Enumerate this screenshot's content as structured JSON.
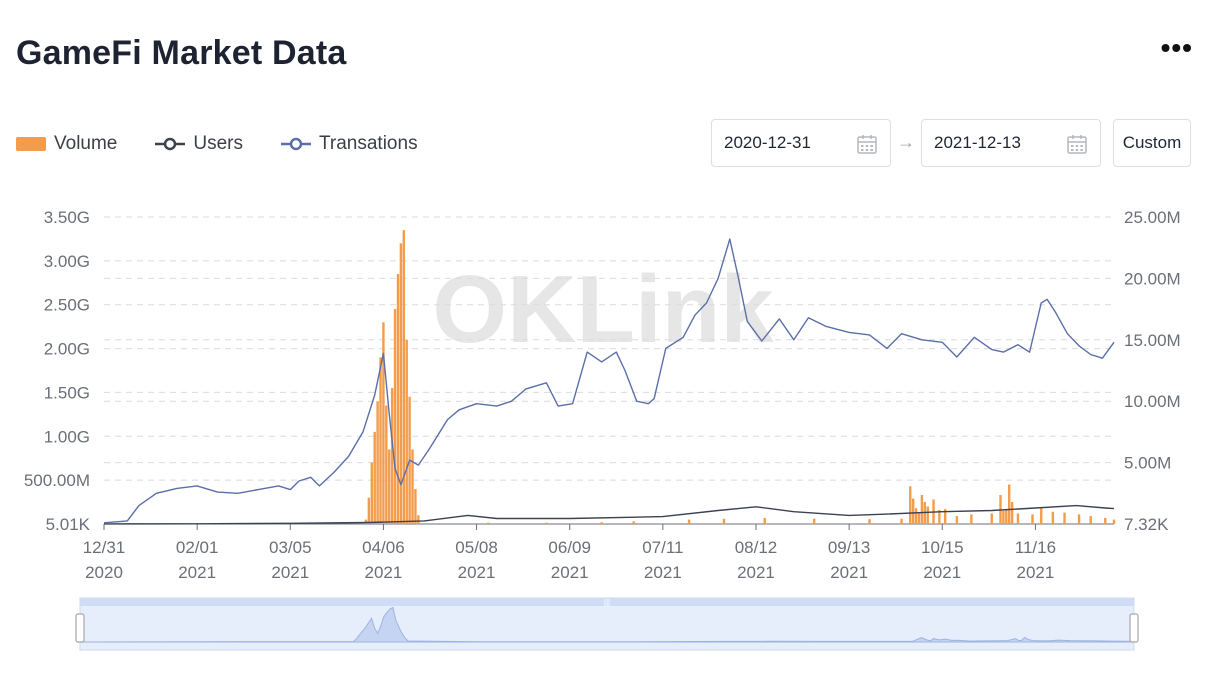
{
  "header": {
    "title": "GameFi Market Data",
    "more_icon": "more-horizontal-icon",
    "more_label": "•••"
  },
  "legend": [
    {
      "label": "Volume",
      "color": "#f39c4b",
      "kind": "bar"
    },
    {
      "label": "Users",
      "color": "#3d4252",
      "kind": "line"
    },
    {
      "label": "Transations",
      "color": "#5b6fa8",
      "kind": "line"
    }
  ],
  "date_range": {
    "start": "2020-12-31",
    "end": "2021-12-13",
    "arrow": "→",
    "custom_label": "Custom",
    "calendar_icon": "calendar-icon"
  },
  "watermark": "OKLink",
  "chart_data": {
    "type": "bar",
    "x_ticks": [
      {
        "date": "12/31",
        "year": "2020"
      },
      {
        "date": "02/01",
        "year": "2021"
      },
      {
        "date": "03/05",
        "year": "2021"
      },
      {
        "date": "04/06",
        "year": "2021"
      },
      {
        "date": "05/08",
        "year": "2021"
      },
      {
        "date": "06/09",
        "year": "2021"
      },
      {
        "date": "07/11",
        "year": "2021"
      },
      {
        "date": "08/12",
        "year": "2021"
      },
      {
        "date": "09/13",
        "year": "2021"
      },
      {
        "date": "10/15",
        "year": "2021"
      },
      {
        "date": "11/16",
        "year": "2021"
      }
    ],
    "left_axis": {
      "ticks": [
        "5.01K",
        "500.00M",
        "1.00G",
        "1.50G",
        "2.00G",
        "2.50G",
        "3.00G",
        "3.50G"
      ],
      "ylim": [
        0,
        3500000000.0
      ]
    },
    "right_axis": {
      "ticks": [
        "7.32K",
        "5.00M",
        "10.00M",
        "15.00M",
        "20.00M",
        "25.00M"
      ],
      "ylim": [
        0,
        25000000
      ]
    },
    "xlim": [
      "2020-12-31",
      "2021-12-13"
    ],
    "series": [
      {
        "name": "Volume",
        "type": "bar",
        "axis": "left",
        "points": [
          [
            "2021-03-31",
            50000000
          ],
          [
            "2021-04-01",
            300000000
          ],
          [
            "2021-04-02",
            700000000
          ],
          [
            "2021-04-03",
            1050000000
          ],
          [
            "2021-04-04",
            1400000000
          ],
          [
            "2021-04-05",
            1900000000
          ],
          [
            "2021-04-06",
            2300000000
          ],
          [
            "2021-04-07",
            1350000000
          ],
          [
            "2021-04-08",
            850000000
          ],
          [
            "2021-04-09",
            1550000000
          ],
          [
            "2021-04-10",
            2450000000
          ],
          [
            "2021-04-11",
            2850000000
          ],
          [
            "2021-04-12",
            3200000000
          ],
          [
            "2021-04-13",
            3350000000
          ],
          [
            "2021-04-14",
            2100000000
          ],
          [
            "2021-04-15",
            1450000000
          ],
          [
            "2021-04-16",
            850000000
          ],
          [
            "2021-04-17",
            400000000
          ],
          [
            "2021-04-18",
            100000000
          ],
          [
            "2021-05-12",
            15000000
          ],
          [
            "2021-06-01",
            15000000
          ],
          [
            "2021-06-20",
            20000000
          ],
          [
            "2021-07-01",
            30000000
          ],
          [
            "2021-07-20",
            50000000
          ],
          [
            "2021-08-01",
            60000000
          ],
          [
            "2021-08-15",
            70000000
          ],
          [
            "2021-09-01",
            60000000
          ],
          [
            "2021-09-20",
            55000000
          ],
          [
            "2021-10-01",
            60000000
          ],
          [
            "2021-10-04",
            430000000
          ],
          [
            "2021-10-05",
            290000000
          ],
          [
            "2021-10-06",
            180000000
          ],
          [
            "2021-10-07",
            120000000
          ],
          [
            "2021-10-08",
            330000000
          ],
          [
            "2021-10-09",
            250000000
          ],
          [
            "2021-10-10",
            200000000
          ],
          [
            "2021-10-12",
            280000000
          ],
          [
            "2021-10-14",
            160000000
          ],
          [
            "2021-10-16",
            170000000
          ],
          [
            "2021-10-20",
            90000000
          ],
          [
            "2021-10-25",
            110000000
          ],
          [
            "2021-11-01",
            120000000
          ],
          [
            "2021-11-04",
            330000000
          ],
          [
            "2021-11-05",
            150000000
          ],
          [
            "2021-11-06",
            160000000
          ],
          [
            "2021-11-07",
            450000000
          ],
          [
            "2021-11-08",
            250000000
          ],
          [
            "2021-11-10",
            120000000
          ],
          [
            "2021-11-15",
            110000000
          ],
          [
            "2021-11-18",
            180000000
          ],
          [
            "2021-11-22",
            140000000
          ],
          [
            "2021-11-26",
            130000000
          ],
          [
            "2021-12-01",
            110000000
          ],
          [
            "2021-12-05",
            90000000
          ],
          [
            "2021-12-10",
            70000000
          ],
          [
            "2021-12-13",
            50000000
          ]
        ]
      },
      {
        "name": "Users",
        "type": "line",
        "axis": "right",
        "points": [
          [
            "2020-12-31",
            7320
          ],
          [
            "2021-02-01",
            20000
          ],
          [
            "2021-03-05",
            60000
          ],
          [
            "2021-04-01",
            120000
          ],
          [
            "2021-04-20",
            250000
          ],
          [
            "2021-05-05",
            700000
          ],
          [
            "2021-05-15",
            450000
          ],
          [
            "2021-06-09",
            450000
          ],
          [
            "2021-07-11",
            600000
          ],
          [
            "2021-07-30",
            1100000
          ],
          [
            "2021-08-12",
            1400000
          ],
          [
            "2021-08-25",
            1000000
          ],
          [
            "2021-09-13",
            700000
          ],
          [
            "2021-09-25",
            800000
          ],
          [
            "2021-10-15",
            1000000
          ],
          [
            "2021-11-01",
            1100000
          ],
          [
            "2021-11-16",
            1300000
          ],
          [
            "2021-11-30",
            1500000
          ],
          [
            "2021-12-10",
            1300000
          ],
          [
            "2021-12-13",
            1250000
          ]
        ]
      },
      {
        "name": "Transations",
        "type": "line",
        "axis": "right",
        "points": [
          [
            "2020-12-31",
            100000
          ],
          [
            "2021-01-08",
            250000
          ],
          [
            "2021-01-12",
            1500000
          ],
          [
            "2021-01-18",
            2500000
          ],
          [
            "2021-01-25",
            2900000
          ],
          [
            "2021-02-01",
            3100000
          ],
          [
            "2021-02-08",
            2600000
          ],
          [
            "2021-02-15",
            2500000
          ],
          [
            "2021-02-22",
            2800000
          ],
          [
            "2021-03-01",
            3100000
          ],
          [
            "2021-03-05",
            2800000
          ],
          [
            "2021-03-08",
            3500000
          ],
          [
            "2021-03-12",
            3800000
          ],
          [
            "2021-03-15",
            3100000
          ],
          [
            "2021-03-20",
            4200000
          ],
          [
            "2021-03-25",
            5500000
          ],
          [
            "2021-03-30",
            7500000
          ],
          [
            "2021-04-03",
            10500000
          ],
          [
            "2021-04-06",
            13900000
          ],
          [
            "2021-04-08",
            9000000
          ],
          [
            "2021-04-10",
            4500000
          ],
          [
            "2021-04-12",
            3200000
          ],
          [
            "2021-04-15",
            5200000
          ],
          [
            "2021-04-18",
            4800000
          ],
          [
            "2021-04-22",
            6200000
          ],
          [
            "2021-04-28",
            8500000
          ],
          [
            "2021-05-02",
            9300000
          ],
          [
            "2021-05-08",
            9800000
          ],
          [
            "2021-05-15",
            9600000
          ],
          [
            "2021-05-20",
            10000000
          ],
          [
            "2021-05-25",
            11000000
          ],
          [
            "2021-06-01",
            11500000
          ],
          [
            "2021-06-05",
            9600000
          ],
          [
            "2021-06-10",
            9800000
          ],
          [
            "2021-06-15",
            14000000
          ],
          [
            "2021-06-20",
            13200000
          ],
          [
            "2021-06-25",
            14000000
          ],
          [
            "2021-06-28",
            12500000
          ],
          [
            "2021-07-02",
            10000000
          ],
          [
            "2021-07-06",
            9800000
          ],
          [
            "2021-07-08",
            10200000
          ],
          [
            "2021-07-12",
            14300000
          ],
          [
            "2021-07-18",
            15200000
          ],
          [
            "2021-07-22",
            17000000
          ],
          [
            "2021-07-26",
            18000000
          ],
          [
            "2021-07-30",
            20000000
          ],
          [
            "2021-08-03",
            23200000
          ],
          [
            "2021-08-06",
            20000000
          ],
          [
            "2021-08-09",
            16500000
          ],
          [
            "2021-08-14",
            14900000
          ],
          [
            "2021-08-20",
            16700000
          ],
          [
            "2021-08-25",
            15000000
          ],
          [
            "2021-08-30",
            16800000
          ],
          [
            "2021-09-05",
            16100000
          ],
          [
            "2021-09-13",
            15600000
          ],
          [
            "2021-09-20",
            15400000
          ],
          [
            "2021-09-26",
            14300000
          ],
          [
            "2021-10-01",
            15500000
          ],
          [
            "2021-10-08",
            15000000
          ],
          [
            "2021-10-15",
            14800000
          ],
          [
            "2021-10-20",
            13600000
          ],
          [
            "2021-10-26",
            15200000
          ],
          [
            "2021-11-01",
            14200000
          ],
          [
            "2021-11-05",
            14000000
          ],
          [
            "2021-11-10",
            14600000
          ],
          [
            "2021-11-14",
            14000000
          ],
          [
            "2021-11-18",
            18000000
          ],
          [
            "2021-11-20",
            18300000
          ],
          [
            "2021-11-23",
            17200000
          ],
          [
            "2021-11-27",
            15500000
          ],
          [
            "2021-12-01",
            14500000
          ],
          [
            "2021-12-05",
            13800000
          ],
          [
            "2021-12-09",
            13500000
          ],
          [
            "2021-12-13",
            14800000
          ]
        ]
      }
    ],
    "grid": true,
    "legend_position": "top-left",
    "data_zoom": {
      "range": [
        "2020-12-31",
        "2021-12-13"
      ],
      "handle_label": "|||"
    }
  }
}
